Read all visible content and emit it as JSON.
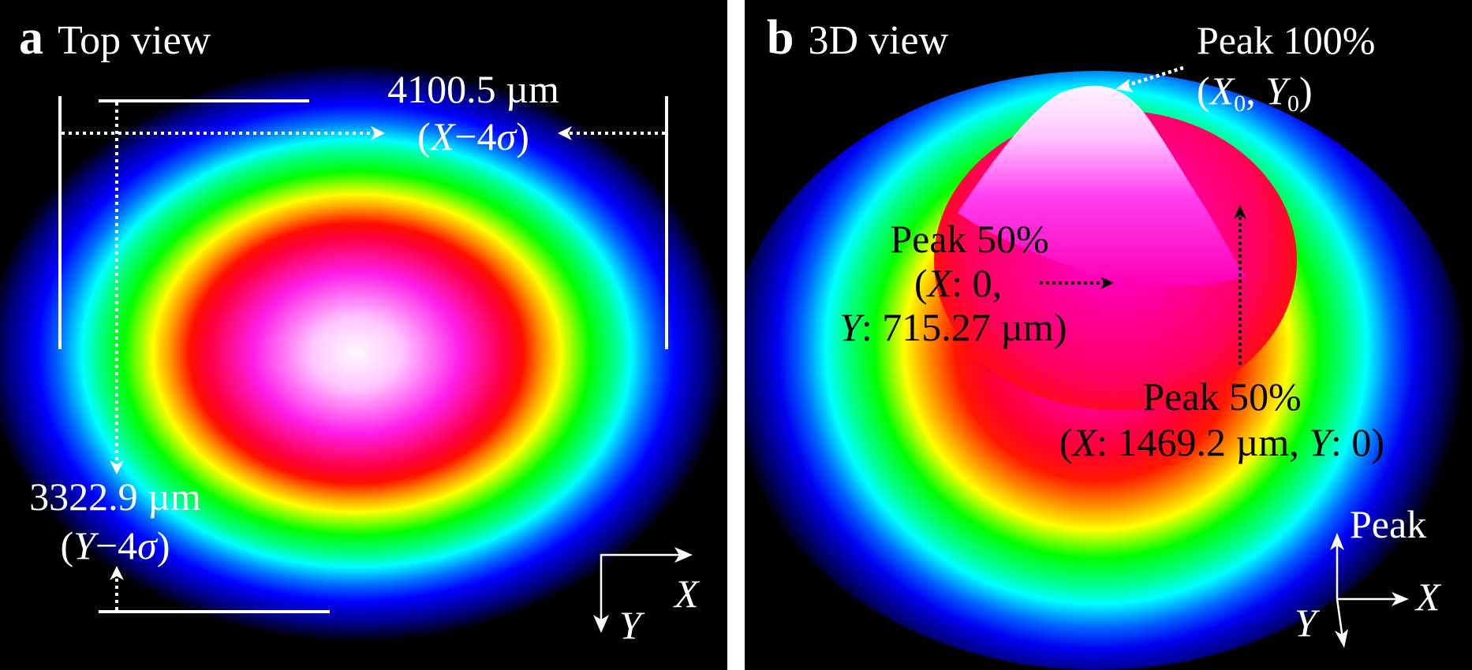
{
  "panel_a": {
    "letter": "a",
    "title": "Top view",
    "x_width": {
      "value": "4100.5 µm",
      "open": "(",
      "var": "X",
      "rest": "−4",
      "sigma": "σ",
      "close": ")"
    },
    "y_width": {
      "value": "3322.9 µm",
      "open": "(",
      "var": "Y",
      "rest": "−4",
      "sigma": "σ",
      "close": ")"
    },
    "axes": {
      "x": "X",
      "y": "Y"
    }
  },
  "panel_b": {
    "letter": "b",
    "title": "3D view",
    "peak_top": {
      "line1": "Peak 100%",
      "open": "(",
      "x_var": "X",
      "x_sub": "0",
      "sep": ", ",
      "y_var": "Y",
      "y_sub": "0",
      "close": ")"
    },
    "peak_half_y": {
      "line1": "Peak 50%",
      "open": "(",
      "x_var": "X",
      "x_val": ": 0,",
      "y_var": "Y",
      "y_val": ": 715.27 µm)"
    },
    "peak_half_x": {
      "line1": "Peak 50%",
      "open": "(",
      "x_var": "X",
      "x_val": ": 1469.2 µm, ",
      "y_var": "Y",
      "y_val": ": 0)"
    },
    "axes": {
      "up": "Peak",
      "x": "X",
      "y": "Y"
    }
  },
  "colors": {
    "background": "#000000",
    "divider": "#ffffff",
    "annotation_light": "#ffffff",
    "annotation_dark": "#000000",
    "colormap": [
      "#fff5ff",
      "#ff8cff",
      "#ff00ff",
      "#ff0000",
      "#ff8000",
      "#ffff00",
      "#00ff00",
      "#00ffff",
      "#0000ff",
      "#000060",
      "#000000"
    ]
  }
}
